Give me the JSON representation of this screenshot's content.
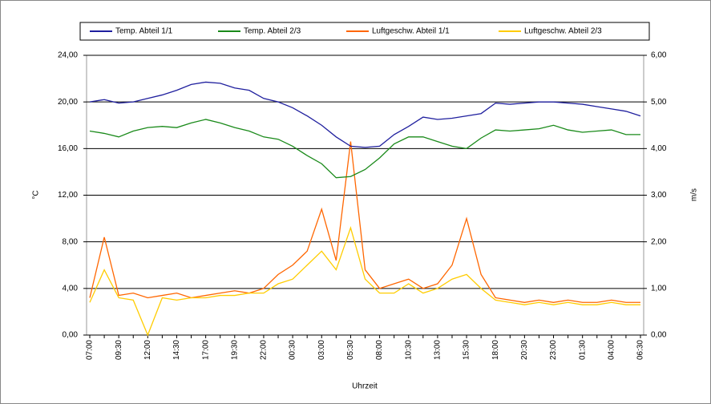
{
  "chart_data": {
    "type": "line",
    "x_label": "Uhrzeit",
    "y_label": "°C",
    "y2_label": "m/s",
    "categories": [
      "07:00",
      null,
      "09:30",
      null,
      "12:00",
      null,
      "14:30",
      null,
      "17:00",
      null,
      "19:30",
      null,
      "22:00",
      null,
      "00:30",
      null,
      "03:00",
      null,
      "05:30",
      null,
      "08:00",
      null,
      "10:30",
      null,
      "13:00",
      null,
      "15:30",
      null,
      "18:00",
      null,
      "20:30",
      null,
      "23:00",
      null,
      "01:30",
      null,
      "04:00",
      null,
      "06:30"
    ],
    "series": [
      {
        "name": "Temp. Abteil 1/1",
        "color": "#1f1f9e",
        "values": [
          20.0,
          20.2,
          19.9,
          20.0,
          20.3,
          20.6,
          21.0,
          21.5,
          21.7,
          21.6,
          21.2,
          21.0,
          20.3,
          20.0,
          19.5,
          18.8,
          18.0,
          17.0,
          16.2,
          16.1,
          16.2,
          17.2,
          17.9,
          18.7,
          18.5,
          18.6,
          18.8,
          19.0,
          19.9,
          19.8,
          19.9,
          20.0,
          20.0,
          19.9,
          19.8,
          19.6,
          19.4,
          19.2,
          18.8
        ]
      },
      {
        "name": "Temp. Abteil 2/3",
        "color": "#1a8a1a",
        "values": [
          17.5,
          17.3,
          17.0,
          17.5,
          17.8,
          17.9,
          17.8,
          18.2,
          18.5,
          18.2,
          17.8,
          17.5,
          17.0,
          16.8,
          16.2,
          15.4,
          14.7,
          13.5,
          13.6,
          14.2,
          15.2,
          16.4,
          17.0,
          17.0,
          16.6,
          16.2,
          16.0,
          16.9,
          17.6,
          17.5,
          17.6,
          17.7,
          18.0,
          17.6,
          17.4,
          17.5,
          17.6,
          17.2,
          17.2
        ]
      },
      {
        "name": "Luftgeschw. Abteil 1/1",
        "color": "#ff6600",
        "axis": "y2",
        "values": [
          0.8,
          2.1,
          0.85,
          0.9,
          0.8,
          0.85,
          0.9,
          0.8,
          0.85,
          0.9,
          0.95,
          0.9,
          1.0,
          1.3,
          1.5,
          1.8,
          2.7,
          1.6,
          4.15,
          1.4,
          1.0,
          1.1,
          1.2,
          1.0,
          1.1,
          1.5,
          2.5,
          1.3,
          0.8,
          0.75,
          0.7,
          0.75,
          0.7,
          0.75,
          0.7,
          0.7,
          0.75,
          0.7,
          0.7
        ]
      },
      {
        "name": "Luftgeschw. Abteil 2/3",
        "color": "#ffcc00",
        "axis": "y2",
        "values": [
          0.7,
          1.4,
          0.8,
          0.75,
          0.0,
          0.8,
          0.75,
          0.8,
          0.8,
          0.85,
          0.85,
          0.9,
          0.9,
          1.1,
          1.2,
          1.5,
          1.8,
          1.4,
          2.3,
          1.2,
          0.9,
          0.9,
          1.1,
          0.9,
          1.0,
          1.2,
          1.3,
          1.0,
          0.75,
          0.7,
          0.65,
          0.7,
          0.65,
          0.7,
          0.65,
          0.65,
          0.7,
          0.65,
          0.65
        ]
      }
    ],
    "ylim": [
      0,
      24
    ],
    "yticks": [
      {
        "value": 0,
        "label": "0,00"
      },
      {
        "value": 4,
        "label": "4,00"
      },
      {
        "value": 8,
        "label": "8,00"
      },
      {
        "value": 12,
        "label": "12,00"
      },
      {
        "value": 16,
        "label": "16,00"
      },
      {
        "value": 20,
        "label": "20,00"
      },
      {
        "value": 24,
        "label": "24,00"
      }
    ],
    "y2lim": [
      0,
      6
    ],
    "y2ticks": [
      {
        "value": 0,
        "label": "0,00"
      },
      {
        "value": 1,
        "label": "1,00"
      },
      {
        "value": 2,
        "label": "2,00"
      },
      {
        "value": 3,
        "label": "3,00"
      },
      {
        "value": 4,
        "label": "4,00"
      },
      {
        "value": 5,
        "label": "5,00"
      },
      {
        "value": 6,
        "label": "6,00"
      }
    ],
    "grid": true,
    "legend": "top"
  }
}
